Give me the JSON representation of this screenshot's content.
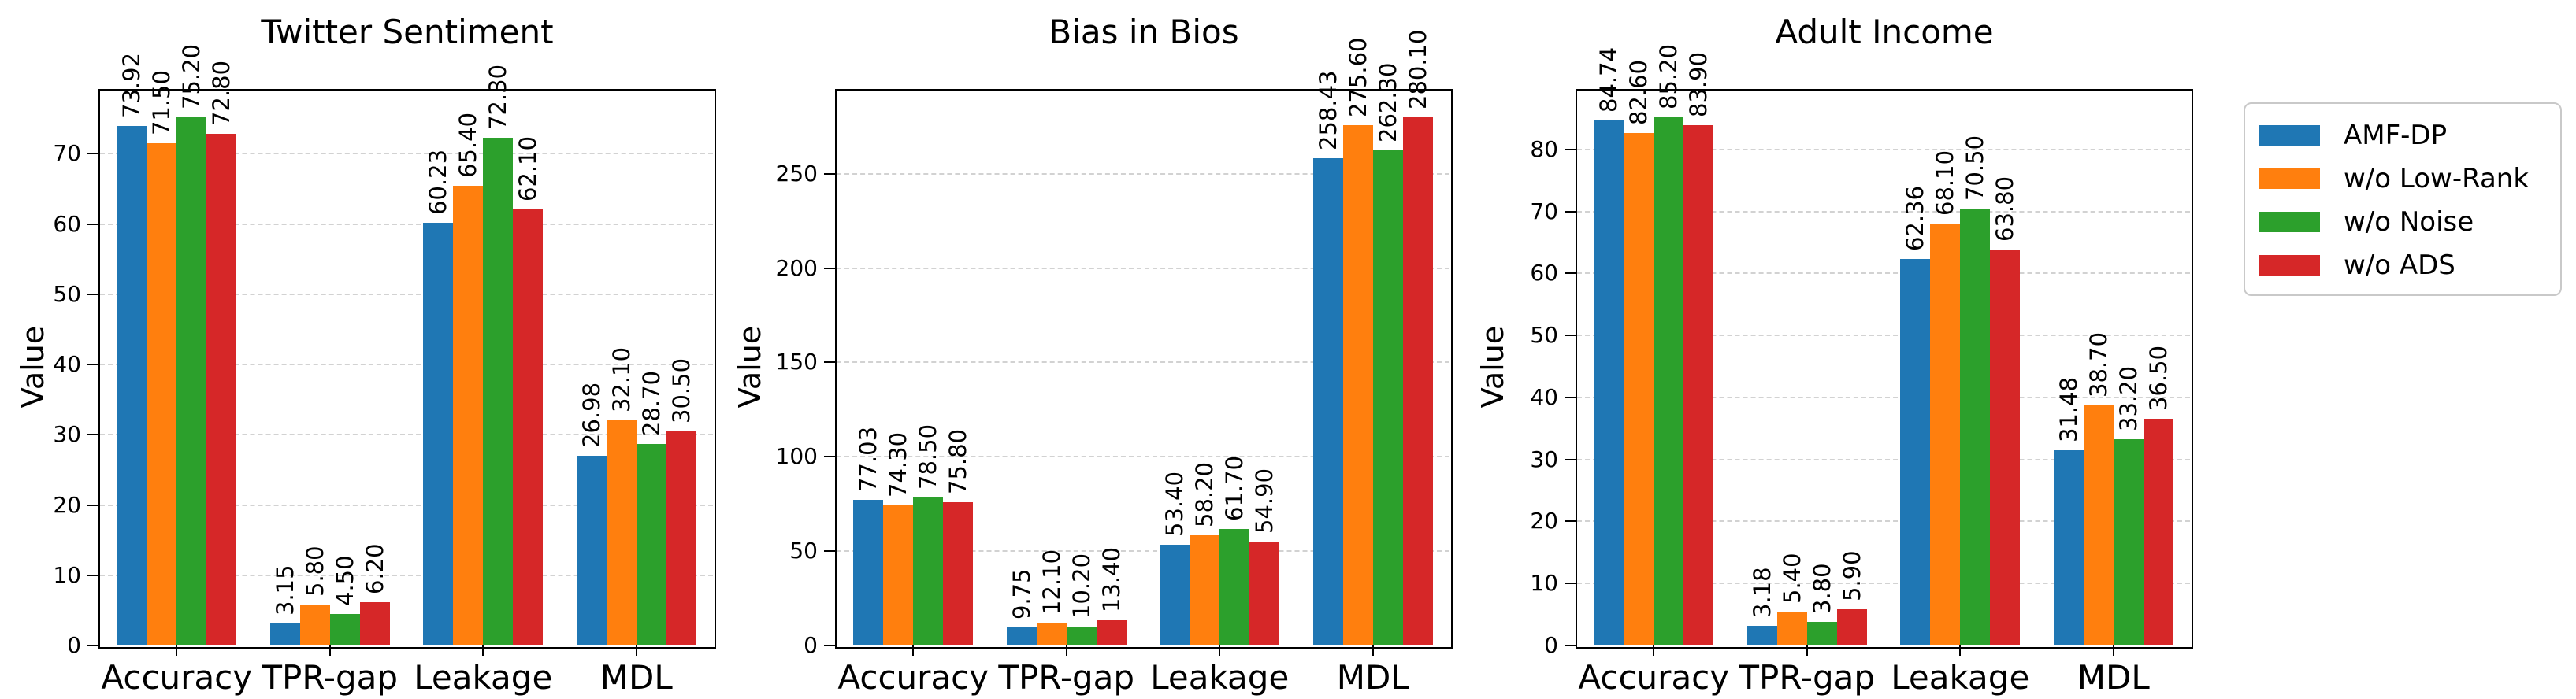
{
  "figure": {
    "background": "#ffffff",
    "series": [
      {
        "name": "AMF-DP",
        "color": "#1f77b4"
      },
      {
        "name": "w/o Low-Rank",
        "color": "#ff7f0e"
      },
      {
        "name": "w/o Noise",
        "color": "#2ca02c"
      },
      {
        "name": "w/o ADS",
        "color": "#d62728"
      }
    ],
    "legend": {
      "position": "outside-right-top",
      "border_color": "#c9c9c9",
      "entries": [
        "AMF-DP",
        "w/o Low-Rank",
        "w/o Noise",
        "w/o ADS"
      ]
    },
    "grid": {
      "style": "dashed",
      "color": "#d2d2d2",
      "axis": "y"
    }
  },
  "chart_data": [
    {
      "type": "bar",
      "title": "Twitter Sentiment",
      "xlabel": "",
      "ylabel": "Value",
      "categories": [
        "Accuracy",
        "TPR-gap",
        "Leakage",
        "MDL"
      ],
      "series": [
        {
          "name": "AMF-DP",
          "color": "#1f77b4",
          "values": [
            73.92,
            3.15,
            60.23,
            26.98
          ]
        },
        {
          "name": "w/o Low-Rank",
          "color": "#ff7f0e",
          "values": [
            71.5,
            5.8,
            65.4,
            32.1
          ]
        },
        {
          "name": "w/o Noise",
          "color": "#2ca02c",
          "values": [
            75.2,
            4.5,
            72.3,
            28.7
          ]
        },
        {
          "name": "w/o ADS",
          "color": "#d62728",
          "values": [
            72.8,
            6.2,
            62.1,
            30.5
          ]
        }
      ],
      "ylim": [
        0,
        79
      ],
      "yticks": [
        0,
        10,
        20,
        30,
        40,
        50,
        60,
        70
      ],
      "grid": true,
      "value_label_decimals": 2,
      "value_label_rotation": 90
    },
    {
      "type": "bar",
      "title": "Bias in Bios",
      "xlabel": "",
      "ylabel": "Value",
      "categories": [
        "Accuracy",
        "TPR-gap",
        "Leakage",
        "MDL"
      ],
      "series": [
        {
          "name": "AMF-DP",
          "color": "#1f77b4",
          "values": [
            77.03,
            9.75,
            53.4,
            258.43
          ]
        },
        {
          "name": "w/o Low-Rank",
          "color": "#ff7f0e",
          "values": [
            74.3,
            12.1,
            58.2,
            275.6
          ]
        },
        {
          "name": "w/o Noise",
          "color": "#2ca02c",
          "values": [
            78.5,
            10.2,
            61.7,
            262.3
          ]
        },
        {
          "name": "w/o ADS",
          "color": "#d62728",
          "values": [
            75.8,
            13.4,
            54.9,
            280.1
          ]
        }
      ],
      "ylim": [
        0,
        294.1
      ],
      "yticks": [
        0,
        50,
        100,
        150,
        200,
        250
      ],
      "grid": true,
      "value_label_decimals": 2,
      "value_label_rotation": 90
    },
    {
      "type": "bar",
      "title": "Adult Income",
      "xlabel": "",
      "ylabel": "Value",
      "categories": [
        "Accuracy",
        "TPR-gap",
        "Leakage",
        "MDL"
      ],
      "series": [
        {
          "name": "AMF-DP",
          "color": "#1f77b4",
          "values": [
            84.74,
            3.18,
            62.36,
            31.48
          ]
        },
        {
          "name": "w/o Low-Rank",
          "color": "#ff7f0e",
          "values": [
            82.6,
            5.4,
            68.1,
            38.7
          ]
        },
        {
          "name": "w/o Noise",
          "color": "#2ca02c",
          "values": [
            85.2,
            3.8,
            70.5,
            33.2
          ]
        },
        {
          "name": "w/o ADS",
          "color": "#d62728",
          "values": [
            83.9,
            5.9,
            63.8,
            36.5
          ]
        }
      ],
      "ylim": [
        0,
        89.5
      ],
      "yticks": [
        0,
        10,
        20,
        30,
        40,
        50,
        60,
        70,
        80
      ],
      "grid": true,
      "value_label_decimals": 2,
      "value_label_rotation": 90
    }
  ]
}
